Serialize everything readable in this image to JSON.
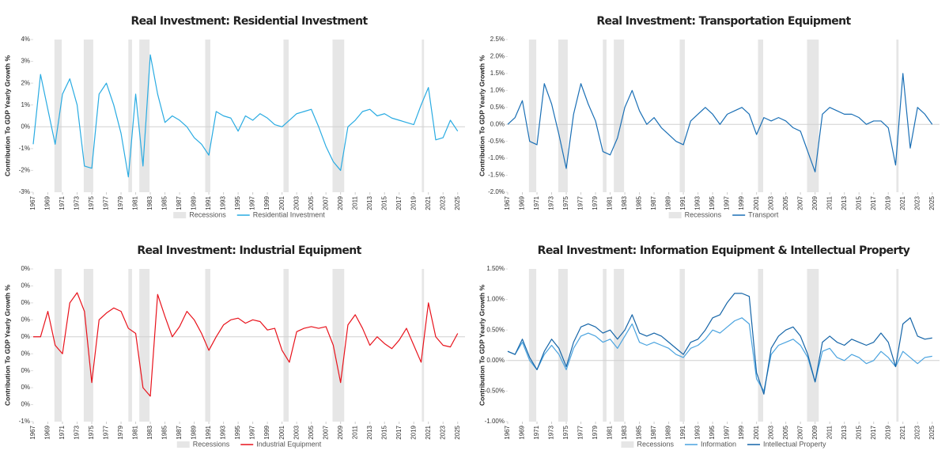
{
  "chart_data": [
    {
      "type": "line",
      "title": "Real Investment: Residential Investment",
      "ylabel": "Contribution To GDP Yearly Growth %",
      "recessions_label": "Recessions",
      "recessions_color": "#e6e6e6",
      "recessions": [
        [
          1969.9,
          1970.9
        ],
        [
          1973.9,
          1975.2
        ],
        [
          1980.0,
          1980.5
        ],
        [
          1981.5,
          1982.9
        ],
        [
          1990.5,
          1991.2
        ],
        [
          2001.2,
          2001.9
        ],
        [
          2007.9,
          2009.5
        ],
        [
          2020.1,
          2020.4
        ]
      ],
      "x": [
        1967,
        1968,
        1969,
        1970,
        1971,
        1972,
        1973,
        1974,
        1975,
        1976,
        1977,
        1978,
        1979,
        1980,
        1981,
        1982,
        1983,
        1984,
        1985,
        1986,
        1987,
        1988,
        1989,
        1990,
        1991,
        1992,
        1993,
        1994,
        1995,
        1996,
        1997,
        1998,
        1999,
        2000,
        2001,
        2002,
        2003,
        2004,
        2005,
        2006,
        2007,
        2008,
        2009,
        2010,
        2011,
        2012,
        2013,
        2014,
        2015,
        2016,
        2017,
        2018,
        2019,
        2020,
        2021,
        2022,
        2023,
        2024,
        2025
      ],
      "series": [
        {
          "name": "Residential Investment",
          "color": "#29abe2",
          "values": [
            -0.8,
            2.4,
            0.8,
            -0.8,
            1.5,
            2.2,
            1.0,
            -1.8,
            -1.9,
            1.5,
            2.0,
            1.0,
            -0.3,
            -2.3,
            1.5,
            -1.8,
            3.3,
            1.5,
            0.2,
            0.5,
            0.3,
            0.0,
            -0.5,
            -0.8,
            -1.3,
            0.7,
            0.5,
            0.4,
            -0.2,
            0.5,
            0.3,
            0.6,
            0.4,
            0.1,
            0.0,
            0.3,
            0.6,
            0.7,
            0.8,
            0.0,
            -0.9,
            -1.6,
            -2.0,
            0.0,
            0.3,
            0.7,
            0.8,
            0.5,
            0.6,
            0.4,
            0.3,
            0.2,
            0.1,
            1.0,
            1.8,
            -0.6,
            -0.5,
            0.3,
            -0.2
          ]
        }
      ],
      "xlim": [
        1967,
        2026
      ],
      "xticks": [
        1967,
        1969,
        1971,
        1973,
        1975,
        1977,
        1979,
        1981,
        1983,
        1985,
        1987,
        1989,
        1991,
        1993,
        1995,
        1997,
        1999,
        2001,
        2003,
        2005,
        2007,
        2009,
        2011,
        2013,
        2015,
        2017,
        2019,
        2021,
        2023,
        2025
      ],
      "ylim": [
        -3,
        4
      ],
      "yticks": [
        {
          "value": 4,
          "label": "4%"
        },
        {
          "value": 3,
          "label": "3%"
        },
        {
          "value": 2,
          "label": "2%"
        },
        {
          "value": 1,
          "label": "1%"
        },
        {
          "value": 0,
          "label": "0%"
        },
        {
          "value": -1,
          "label": "-1%"
        },
        {
          "value": -2,
          "label": "-2%"
        },
        {
          "value": -3,
          "label": "-3%"
        }
      ],
      "grid": false
    },
    {
      "type": "line",
      "title": "Real Investment: Transportation Equipment",
      "ylabel": "Contribution To GDP Yearly Growth %",
      "recessions_label": "Recessions",
      "recessions_color": "#e6e6e6",
      "recessions": [
        [
          1969.9,
          1970.9
        ],
        [
          1973.9,
          1975.2
        ],
        [
          1980.0,
          1980.5
        ],
        [
          1981.5,
          1982.9
        ],
        [
          1990.5,
          1991.2
        ],
        [
          2001.2,
          2001.9
        ],
        [
          2007.9,
          2009.5
        ],
        [
          2020.1,
          2020.4
        ]
      ],
      "x": [
        1967,
        1968,
        1969,
        1970,
        1971,
        1972,
        1973,
        1974,
        1975,
        1976,
        1977,
        1978,
        1979,
        1980,
        1981,
        1982,
        1983,
        1984,
        1985,
        1986,
        1987,
        1988,
        1989,
        1990,
        1991,
        1992,
        1993,
        1994,
        1995,
        1996,
        1997,
        1998,
        1999,
        2000,
        2001,
        2002,
        2003,
        2004,
        2005,
        2006,
        2007,
        2008,
        2009,
        2010,
        2011,
        2012,
        2013,
        2014,
        2015,
        2016,
        2017,
        2018,
        2019,
        2020,
        2021,
        2022,
        2023,
        2024,
        2025
      ],
      "series": [
        {
          "name": "Transport",
          "color": "#1a6fb5",
          "values": [
            0,
            0.2,
            0.7,
            -0.5,
            -0.6,
            1.2,
            0.6,
            -0.3,
            -1.3,
            0.3,
            1.2,
            0.6,
            0.1,
            -0.8,
            -0.9,
            -0.4,
            0.5,
            1.0,
            0.4,
            0.0,
            0.2,
            -0.1,
            -0.3,
            -0.5,
            -0.6,
            0.1,
            0.3,
            0.5,
            0.3,
            0.0,
            0.3,
            0.4,
            0.5,
            0.3,
            -0.3,
            0.2,
            0.1,
            0.2,
            0.1,
            -0.1,
            -0.2,
            -0.8,
            -1.4,
            0.3,
            0.5,
            0.4,
            0.3,
            0.3,
            0.2,
            0.0,
            0.1,
            0.1,
            -0.1,
            -1.2,
            1.5,
            -0.7,
            0.5,
            0.3,
            0.0
          ]
        }
      ],
      "xlim": [
        1967,
        2026
      ],
      "xticks": [
        1967,
        1969,
        1971,
        1973,
        1975,
        1977,
        1979,
        1981,
        1983,
        1985,
        1987,
        1989,
        1991,
        1993,
        1995,
        1997,
        1999,
        2001,
        2003,
        2005,
        2007,
        2009,
        2011,
        2013,
        2015,
        2017,
        2019,
        2021,
        2023,
        2025
      ],
      "ylim": [
        -2,
        2.5
      ],
      "yticks": [
        {
          "value": 2.5,
          "label": "2.5%"
        },
        {
          "value": 2,
          "label": "2.0%"
        },
        {
          "value": 1.5,
          "label": "1.5%"
        },
        {
          "value": 1,
          "label": "1.0%"
        },
        {
          "value": 0.5,
          "label": "0.5%"
        },
        {
          "value": 0,
          "label": "0.0%"
        },
        {
          "value": -0.5,
          "label": "-0.5%"
        },
        {
          "value": -1,
          "label": "-1.0%"
        },
        {
          "value": -1.5,
          "label": "-1.5%"
        },
        {
          "value": -2,
          "label": "-2.0%"
        }
      ],
      "grid": false
    },
    {
      "type": "line",
      "title": "Real Investment: Industrial Equipment",
      "ylabel": "Contribution To GDP Yearly Growth %",
      "recessions_label": "Recessions",
      "recessions_color": "#e6e6e6",
      "recessions": [
        [
          1969.9,
          1970.9
        ],
        [
          1973.9,
          1975.2
        ],
        [
          1980.0,
          1980.5
        ],
        [
          1981.5,
          1982.9
        ],
        [
          1990.5,
          1991.2
        ],
        [
          2001.2,
          2001.9
        ],
        [
          2007.9,
          2009.5
        ],
        [
          2020.1,
          2020.4
        ]
      ],
      "x": [
        1967,
        1968,
        1969,
        1970,
        1971,
        1972,
        1973,
        1974,
        1975,
        1976,
        1977,
        1978,
        1979,
        1980,
        1981,
        1982,
        1983,
        1984,
        1985,
        1986,
        1987,
        1988,
        1989,
        1990,
        1991,
        1992,
        1993,
        1994,
        1995,
        1996,
        1997,
        1998,
        1999,
        2000,
        2001,
        2002,
        2003,
        2004,
        2005,
        2006,
        2007,
        2008,
        2009,
        2010,
        2011,
        2012,
        2013,
        2014,
        2015,
        2016,
        2017,
        2018,
        2019,
        2020,
        2021,
        2022,
        2023,
        2024,
        2025
      ],
      "series": [
        {
          "name": "Industrial Equipment",
          "color": "#e8121b",
          "values": [
            0,
            0.0,
            0.15,
            -0.05,
            -0.1,
            0.2,
            0.26,
            0.15,
            -0.27,
            0.1,
            0.14,
            0.17,
            0.15,
            0.05,
            0.02,
            -0.3,
            -0.35,
            0.25,
            0.12,
            0.0,
            0.06,
            0.15,
            0.1,
            0.02,
            -0.08,
            0.0,
            0.07,
            0.1,
            0.11,
            0.08,
            0.1,
            0.09,
            0.04,
            0.05,
            -0.08,
            -0.15,
            0.03,
            0.05,
            0.06,
            0.05,
            0.06,
            -0.05,
            -0.27,
            0.07,
            0.13,
            0.05,
            -0.05,
            0.0,
            -0.04,
            -0.07,
            -0.02,
            0.05,
            -0.05,
            -0.15,
            0.2,
            0.0,
            -0.05,
            -0.06,
            0.02
          ]
        }
      ],
      "xlim": [
        1967,
        2026
      ],
      "xticks": [
        1967,
        1969,
        1971,
        1973,
        1975,
        1977,
        1979,
        1981,
        1983,
        1985,
        1987,
        1989,
        1991,
        1993,
        1995,
        1997,
        1999,
        2001,
        2003,
        2005,
        2007,
        2009,
        2011,
        2013,
        2015,
        2017,
        2019,
        2021,
        2023,
        2025
      ],
      "ylim": [
        -0.5,
        0.4
      ],
      "yticks": [
        {
          "value": 0.4,
          "label": "0%"
        },
        {
          "value": 0.3,
          "label": "0%"
        },
        {
          "value": 0.2,
          "label": "0%"
        },
        {
          "value": 0.1,
          "label": "0%"
        },
        {
          "value": 0,
          "label": "0%"
        },
        {
          "value": -0.1,
          "label": "0%"
        },
        {
          "value": -0.2,
          "label": "0%"
        },
        {
          "value": -0.3,
          "label": "0%"
        },
        {
          "value": -0.4,
          "label": "0%"
        },
        {
          "value": -0.5,
          "label": "-1%"
        }
      ],
      "grid": false
    },
    {
      "type": "line",
      "title": "Real Investment: Information Equipment & Intellectual Property",
      "ylabel": "Contribution To GDP Yearly Growth %",
      "recessions_label": "Recessions",
      "recessions_color": "#e6e6e6",
      "recessions": [
        [
          1969.9,
          1970.9
        ],
        [
          1973.9,
          1975.2
        ],
        [
          1980.0,
          1980.5
        ],
        [
          1981.5,
          1982.9
        ],
        [
          1990.5,
          1991.2
        ],
        [
          2001.2,
          2001.9
        ],
        [
          2007.9,
          2009.5
        ],
        [
          2020.1,
          2020.4
        ]
      ],
      "x": [
        1967,
        1968,
        1969,
        1970,
        1971,
        1972,
        1973,
        1974,
        1975,
        1976,
        1977,
        1978,
        1979,
        1980,
        1981,
        1982,
        1983,
        1984,
        1985,
        1986,
        1987,
        1988,
        1989,
        1990,
        1991,
        1992,
        1993,
        1994,
        1995,
        1996,
        1997,
        1998,
        1999,
        2000,
        2001,
        2002,
        2003,
        2004,
        2005,
        2006,
        2007,
        2008,
        2009,
        2010,
        2011,
        2012,
        2013,
        2014,
        2015,
        2016,
        2017,
        2018,
        2019,
        2020,
        2021,
        2022,
        2023,
        2024,
        2025
      ],
      "series": [
        {
          "name": "Information",
          "color": "#4aa3df",
          "values": [
            0.15,
            0.1,
            0.3,
            0.0,
            -0.15,
            0.1,
            0.25,
            0.1,
            -0.15,
            0.2,
            0.4,
            0.45,
            0.4,
            0.3,
            0.35,
            0.2,
            0.4,
            0.6,
            0.3,
            0.25,
            0.3,
            0.25,
            0.2,
            0.1,
            0.05,
            0.2,
            0.25,
            0.35,
            0.5,
            0.45,
            0.55,
            0.65,
            0.7,
            0.6,
            -0.3,
            -0.5,
            0.1,
            0.25,
            0.3,
            0.35,
            0.25,
            0.05,
            -0.35,
            0.15,
            0.2,
            0.05,
            0.0,
            0.1,
            0.05,
            -0.05,
            0.0,
            0.15,
            0.05,
            -0.1,
            0.15,
            0.05,
            -0.05,
            0.05,
            0.07
          ]
        },
        {
          "name": "Intellectual Property",
          "color": "#1565a8",
          "values": [
            0.15,
            0.1,
            0.35,
            0.05,
            -0.15,
            0.15,
            0.35,
            0.2,
            -0.1,
            0.3,
            0.55,
            0.6,
            0.55,
            0.45,
            0.5,
            0.35,
            0.5,
            0.75,
            0.45,
            0.4,
            0.45,
            0.4,
            0.3,
            0.2,
            0.1,
            0.3,
            0.35,
            0.5,
            0.7,
            0.75,
            0.95,
            1.1,
            1.1,
            1.05,
            -0.2,
            -0.55,
            0.2,
            0.4,
            0.5,
            0.55,
            0.4,
            0.1,
            -0.35,
            0.3,
            0.4,
            0.3,
            0.25,
            0.35,
            0.3,
            0.25,
            0.3,
            0.45,
            0.3,
            -0.1,
            0.6,
            0.7,
            0.4,
            0.35,
            0.37
          ]
        }
      ],
      "xlim": [
        1967,
        2026
      ],
      "xticks": [
        1967,
        1969,
        1971,
        1973,
        1975,
        1977,
        1979,
        1981,
        1983,
        1985,
        1987,
        1989,
        1991,
        1993,
        1995,
        1997,
        1999,
        2001,
        2003,
        2005,
        2007,
        2009,
        2011,
        2013,
        2015,
        2017,
        2019,
        2021,
        2023,
        2025
      ],
      "ylim": [
        -1,
        1.5
      ],
      "yticks": [
        {
          "value": 1.5,
          "label": "1.50%"
        },
        {
          "value": 1,
          "label": "1.00%"
        },
        {
          "value": 0.5,
          "label": "0.50%"
        },
        {
          "value": 0,
          "label": "0.00%"
        },
        {
          "value": -0.5,
          "label": "-0.50%"
        },
        {
          "value": -1,
          "label": "-1.00%"
        }
      ],
      "grid": false
    }
  ]
}
